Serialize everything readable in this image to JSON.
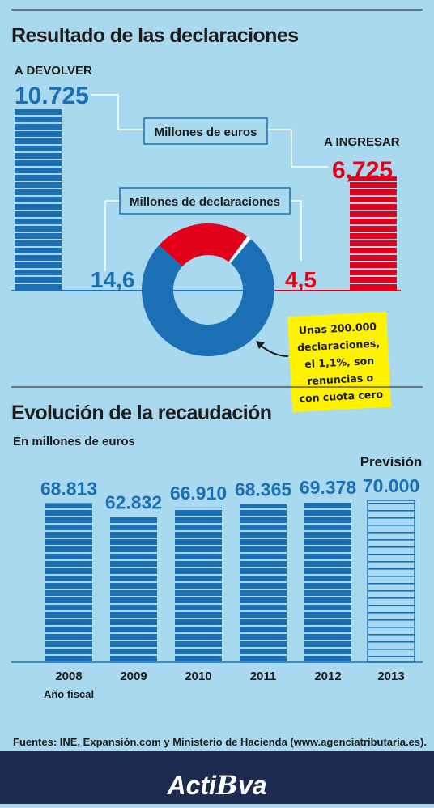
{
  "chart_data": [
    {
      "type": "bar",
      "title": "Resultado de las declaraciones",
      "unit_label": "Millones de euros",
      "categories": [
        "A DEVOLVER",
        "A INGRESAR"
      ],
      "values": [
        10725,
        6725
      ],
      "value_labels": [
        "10.725",
        "6,725"
      ],
      "colors": [
        "#1a6fb5",
        "#e3001b"
      ]
    },
    {
      "type": "donut",
      "unit_label": "Millones de declaraciones",
      "values": [
        14.6,
        4.5,
        0.2
      ],
      "value_labels": [
        "14,6",
        "4,5",
        null
      ],
      "colors": [
        "#1a6fb5",
        "#e3001b",
        "#ffffff"
      ],
      "annotation": [
        "Unas 200.000",
        "declaraciones,",
        "el 1,1%, son",
        "renuncias o",
        "con cuota cero"
      ]
    },
    {
      "type": "bar",
      "title": "Evolución de la recaudación",
      "subtitle": "En millones de euros",
      "x_label": "Año fiscal",
      "categories": [
        "2008",
        "2009",
        "2010",
        "2011",
        "2012",
        "2013"
      ],
      "values": [
        68813,
        62832,
        66910,
        68365,
        69378,
        70000
      ],
      "value_labels": [
        "68.813",
        "62.832",
        "66.910",
        "68.365",
        "69.378",
        "70.000"
      ],
      "color": "#1a6fb5",
      "annotation": {
        "text": "Previsión",
        "index": 5
      }
    }
  ],
  "footer": {
    "sources": "Fuentes: INE, Expansión.com y Ministerio de Hacienda (www.agenciatributaria.es).",
    "logo": [
      "Acti",
      "B",
      "va"
    ]
  }
}
